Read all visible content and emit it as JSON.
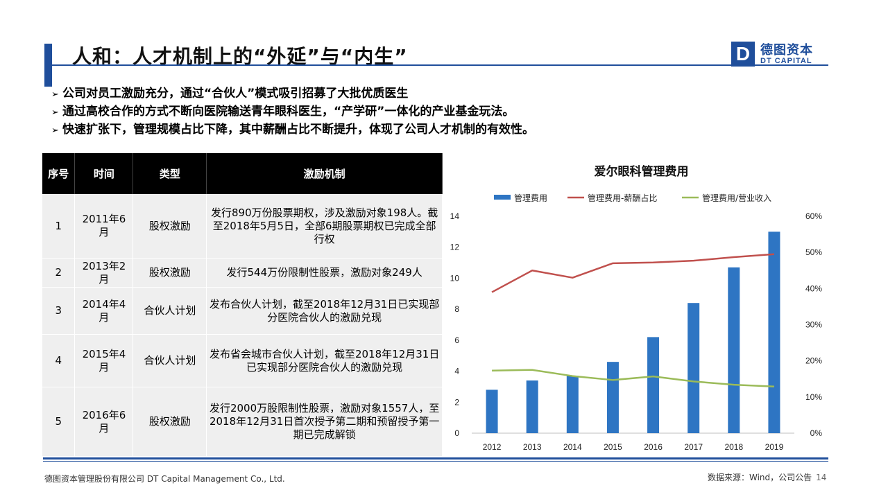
{
  "header": {
    "title": "人和：人才机制上的“外延”与“内生”",
    "logo_mark": "D",
    "logo_cn": "德图资本",
    "logo_en": "DT CAPITAL"
  },
  "bullets": [
    "公司对员工激励充分，通过“合伙人”模式吸引招募了大批优质医生",
    "通过高校合作的方式不断向医院输送青年眼科医生，“产学研”一体化的产业基金玩法。",
    "快速扩张下，管理规模占比下降，其中薪酬占比不断提升，体现了公司人才机制的有效性。"
  ],
  "table": {
    "headers": [
      "序号",
      "时间",
      "类型",
      "激励机制"
    ],
    "rows": [
      [
        "1",
        "2011年6月",
        "股权激励",
        "发行890万份股票期权，涉及激励对象198人。截至2018年5月5日，全部6期股票期权已完成全部行权"
      ],
      [
        "2",
        "2013年2月",
        "股权激励",
        "发行544万份限制性股票，激励对象249人"
      ],
      [
        "3",
        "2014年4月",
        "合伙人计划",
        "发布合伙人计划，截至2018年12月31日已实现部分医院合伙人的激励兑现"
      ],
      [
        "4",
        "2015年4月",
        "合伙人计划",
        "发布省会城市合伙人计划，截至2018年12月31日已实现部分医院合伙人的激励兑现"
      ],
      [
        "5",
        "2016年6月",
        "股权激励",
        "发行2000万股限制性股票，激励对象1557人，至2018年12月31日首次授予第二期和预留授予第一期已完成解锁"
      ]
    ]
  },
  "chart_data": {
    "type": "bar",
    "title": "爱尔眼科管理费用",
    "categories": [
      "2012",
      "2013",
      "2014",
      "2015",
      "2016",
      "2017",
      "2018",
      "2019"
    ],
    "series": [
      {
        "name": "管理费用",
        "type": "bar",
        "axis": "left",
        "color": "#2e75c3",
        "values": [
          2.8,
          3.4,
          3.7,
          4.6,
          6.2,
          8.4,
          10.7,
          13.0
        ]
      },
      {
        "name": "管理费用-薪酬占比",
        "type": "line",
        "axis": "right",
        "color": "#c0504d",
        "values": [
          0.39,
          0.45,
          0.43,
          0.47,
          0.472,
          0.477,
          0.487,
          0.495
        ]
      },
      {
        "name": "管理费用/营业收入",
        "type": "line",
        "axis": "right",
        "color": "#9bbb59",
        "values": [
          0.173,
          0.175,
          0.158,
          0.147,
          0.157,
          0.143,
          0.134,
          0.129
        ]
      }
    ],
    "y_left": {
      "min": 0,
      "max": 14,
      "ticks": [
        "0",
        "2",
        "4",
        "6",
        "8",
        "10",
        "12",
        "14"
      ]
    },
    "y_right": {
      "min": 0,
      "max": 0.6,
      "ticks": [
        "0%",
        "10%",
        "20%",
        "30%",
        "40%",
        "50%",
        "60%"
      ]
    },
    "legend": "top",
    "grid": false
  },
  "footer": {
    "company": "德图资本管理股份有限公司  DT Capital Management  Co., Ltd.",
    "source": "数据来源：Wind，公司公告",
    "page": "14"
  }
}
